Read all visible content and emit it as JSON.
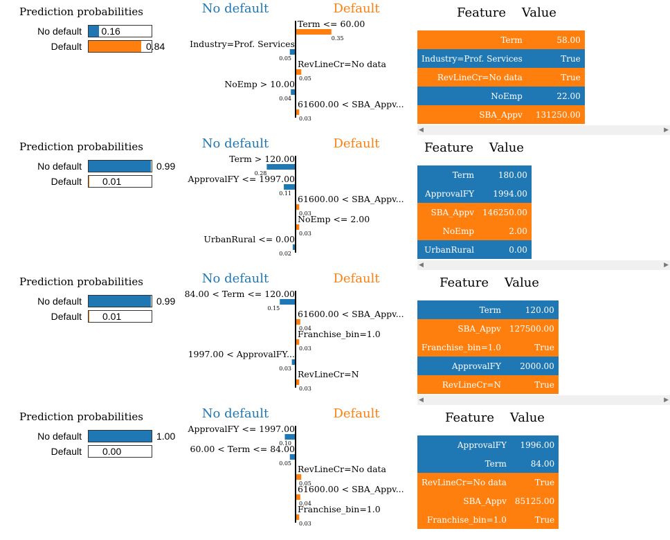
{
  "colors": {
    "no_default": "#1f77b4",
    "default": "#ff7f0e"
  },
  "chart_data": [
    {
      "type": "bar",
      "title": "Prediction probabilities",
      "probabilities": [
        {
          "label": "No default",
          "value": 0.16,
          "text": "0.16"
        },
        {
          "label": "Default",
          "value": 0.84,
          "text": "0.84"
        }
      ],
      "class_left": "No default",
      "class_right": "Default",
      "features": [
        {
          "label": "Term <= 60.00",
          "weight": 0.35,
          "text": "0.35",
          "side": "default"
        },
        {
          "label": "Industry=Prof. Services",
          "weight": 0.05,
          "text": "0.05",
          "side": "no_default"
        },
        {
          "label": "RevLineCr=No data",
          "weight": 0.05,
          "text": "0.05",
          "side": "default"
        },
        {
          "label": "NoEmp > 10.00",
          "weight": 0.04,
          "text": "0.04",
          "side": "no_default"
        },
        {
          "label": "61600.00 < SBA_Appv...",
          "weight": 0.03,
          "text": "0.03",
          "side": "default"
        }
      ],
      "table": {
        "header_feature": "Feature",
        "header_value": "Value",
        "rows": [
          {
            "feature": "Term",
            "value": "58.00",
            "side": "default"
          },
          {
            "feature": "Industry=Prof. Services",
            "value": "True",
            "side": "no_default"
          },
          {
            "feature": "RevLineCr=No data",
            "value": "True",
            "side": "default"
          },
          {
            "feature": "NoEmp",
            "value": "22.00",
            "side": "no_default"
          },
          {
            "feature": "SBA_Appv",
            "value": "131250.00",
            "side": "default"
          }
        ]
      }
    },
    {
      "type": "bar",
      "title": "Prediction probabilities",
      "probabilities": [
        {
          "label": "No default",
          "value": 0.99,
          "text": "0.99"
        },
        {
          "label": "Default",
          "value": 0.01,
          "text": "0.01"
        }
      ],
      "class_left": "No default",
      "class_right": "Default",
      "features": [
        {
          "label": "Term > 120.00",
          "weight": 0.28,
          "text": "0.28",
          "side": "no_default"
        },
        {
          "label": "ApprovalFY <= 1997.00",
          "weight": 0.11,
          "text": "0.11",
          "side": "no_default"
        },
        {
          "label": "61600.00 < SBA_Appv...",
          "weight": 0.03,
          "text": "0.03",
          "side": "default"
        },
        {
          "label": "NoEmp <= 2.00",
          "weight": 0.03,
          "text": "0.03",
          "side": "default"
        },
        {
          "label": "UrbanRural <= 0.00",
          "weight": 0.02,
          "text": "0.02",
          "side": "no_default"
        }
      ],
      "table": {
        "header_feature": "Feature",
        "header_value": "Value",
        "rows": [
          {
            "feature": "Term",
            "value": "180.00",
            "side": "no_default"
          },
          {
            "feature": "ApprovalFY",
            "value": "1994.00",
            "side": "no_default"
          },
          {
            "feature": "SBA_Appv",
            "value": "146250.00",
            "side": "default"
          },
          {
            "feature": "NoEmp",
            "value": "2.00",
            "side": "default"
          },
          {
            "feature": "UrbanRural",
            "value": "0.00",
            "side": "no_default"
          }
        ]
      }
    },
    {
      "type": "bar",
      "title": "Prediction probabilities",
      "probabilities": [
        {
          "label": "No default",
          "value": 0.99,
          "text": "0.99"
        },
        {
          "label": "Default",
          "value": 0.01,
          "text": "0.01"
        }
      ],
      "class_left": "No default",
      "class_right": "Default",
      "features": [
        {
          "label": "84.00 < Term <= 120.00",
          "weight": 0.15,
          "text": "0.15",
          "side": "no_default"
        },
        {
          "label": "61600.00 < SBA_Appv...",
          "weight": 0.04,
          "text": "0.04",
          "side": "default"
        },
        {
          "label": "Franchise_bin=1.0",
          "weight": 0.03,
          "text": "0.03",
          "side": "default"
        },
        {
          "label": "1997.00 < ApprovalFY...",
          "weight": 0.03,
          "text": "0.03",
          "side": "no_default"
        },
        {
          "label": "RevLineCr=N",
          "weight": 0.03,
          "text": "0.03",
          "side": "default"
        }
      ],
      "table": {
        "header_feature": "Feature",
        "header_value": "Value",
        "rows": [
          {
            "feature": "Term",
            "value": "120.00",
            "side": "no_default"
          },
          {
            "feature": "SBA_Appv",
            "value": "127500.00",
            "side": "default"
          },
          {
            "feature": "Franchise_bin=1.0",
            "value": "True",
            "side": "default"
          },
          {
            "feature": "ApprovalFY",
            "value": "2000.00",
            "side": "no_default"
          },
          {
            "feature": "RevLineCr=N",
            "value": "True",
            "side": "default"
          }
        ]
      }
    },
    {
      "type": "bar",
      "title": "Prediction probabilities",
      "probabilities": [
        {
          "label": "No default",
          "value": 1.0,
          "text": "1.00"
        },
        {
          "label": "Default",
          "value": 0.0,
          "text": "0.00"
        }
      ],
      "class_left": "No default",
      "class_right": "Default",
      "features": [
        {
          "label": "ApprovalFY <= 1997.00",
          "weight": 0.1,
          "text": "0.10",
          "side": "no_default"
        },
        {
          "label": "60.00 < Term <= 84.00",
          "weight": 0.05,
          "text": "0.05",
          "side": "no_default"
        },
        {
          "label": "RevLineCr=No data",
          "weight": 0.05,
          "text": "0.05",
          "side": "default"
        },
        {
          "label": "61600.00 < SBA_Appv...",
          "weight": 0.04,
          "text": "0.04",
          "side": "default"
        },
        {
          "label": "Franchise_bin=1.0",
          "weight": 0.03,
          "text": "0.03",
          "side": "default"
        }
      ],
      "table": {
        "header_feature": "Feature",
        "header_value": "Value",
        "rows": [
          {
            "feature": "ApprovalFY",
            "value": "1996.00",
            "side": "no_default"
          },
          {
            "feature": "Term",
            "value": "84.00",
            "side": "no_default"
          },
          {
            "feature": "RevLineCr=No data",
            "value": "True",
            "side": "default"
          },
          {
            "feature": "SBA_Appv",
            "value": "85125.00",
            "side": "default"
          },
          {
            "feature": "Franchise_bin=1.0",
            "value": "True",
            "side": "default"
          }
        ]
      }
    }
  ]
}
